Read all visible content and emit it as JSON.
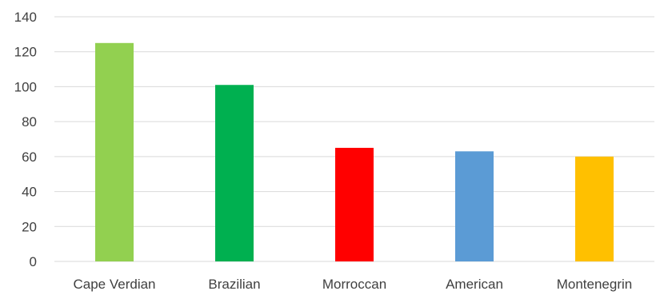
{
  "chart_data": {
    "type": "bar",
    "categories": [
      "Cape Verdian",
      "Brazilian",
      "Morroccan",
      "American",
      "Montenegrin"
    ],
    "values": [
      125,
      101,
      65,
      63,
      60
    ],
    "colors": [
      "#92d050",
      "#00b050",
      "#ff0000",
      "#5b9bd5",
      "#ffc000"
    ],
    "ylim": [
      0,
      140
    ],
    "yticks": [
      0,
      20,
      40,
      60,
      80,
      100,
      120,
      140
    ],
    "grid": true,
    "legend": "none",
    "title": "",
    "xlabel": "",
    "ylabel": ""
  }
}
